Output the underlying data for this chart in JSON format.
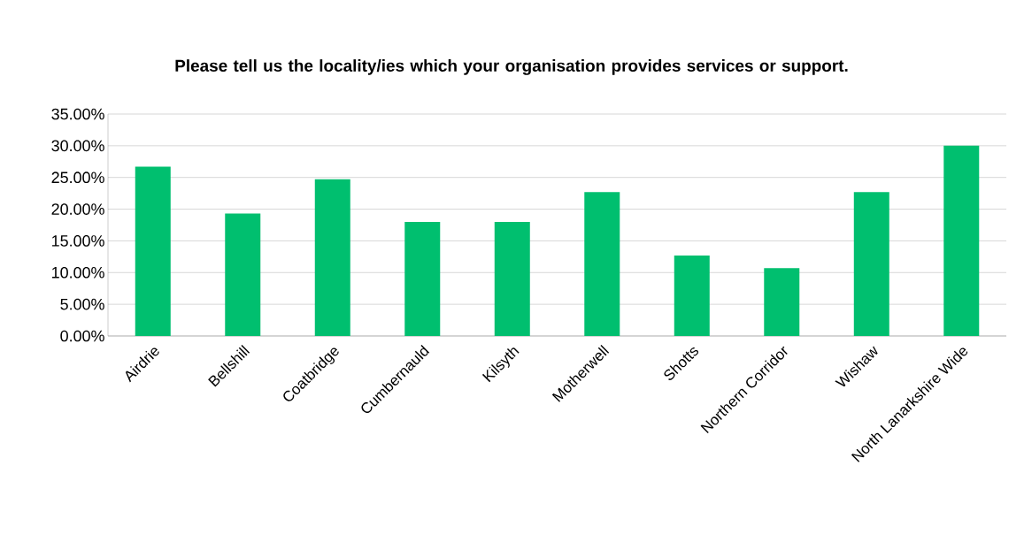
{
  "chart_data": {
    "type": "bar",
    "title": "Please tell us the locality/ies which your organisation provides services or support.",
    "categories": [
      "Airdrie",
      "Bellshill",
      "Coatbridge",
      "Cumbernauld",
      "Kilsyth",
      "Motherwell",
      "Shotts",
      "Northern Corridor",
      "Wishaw",
      "North Lanarkshire Wide"
    ],
    "values": [
      26.7,
      19.3,
      24.7,
      18.0,
      18.0,
      22.7,
      12.7,
      10.7,
      22.7,
      30.0
    ],
    "color": "#00bf6f",
    "ylim": [
      0,
      35
    ],
    "yticks": [
      {
        "value": 0,
        "label": "0.00%"
      },
      {
        "value": 5,
        "label": "5.00%"
      },
      {
        "value": 10,
        "label": "10.00%"
      },
      {
        "value": 15,
        "label": "15.00%"
      },
      {
        "value": 20,
        "label": "20.00%"
      },
      {
        "value": 25,
        "label": "25.00%"
      },
      {
        "value": 30,
        "label": "30.00%"
      },
      {
        "value": 35,
        "label": "35.00%"
      }
    ],
    "grid": "y"
  }
}
